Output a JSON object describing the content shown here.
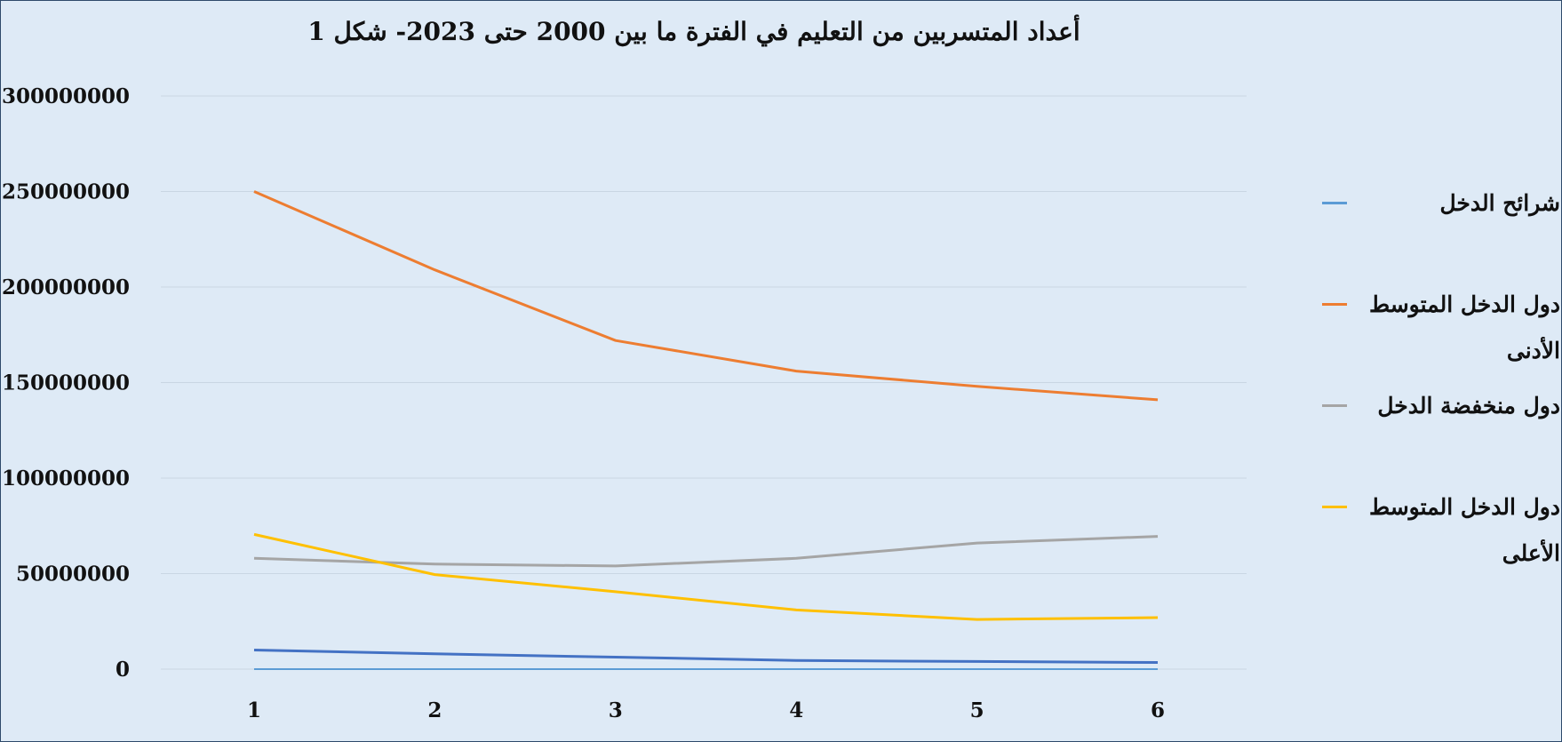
{
  "chart_data": {
    "type": "line",
    "title": "أعداد المتسربين من التعليم في الفترة ما بين 2000 حتى 2023- شكل 1",
    "x": [
      1,
      2,
      3,
      4,
      5,
      6
    ],
    "ylim": [
      0,
      300000000
    ],
    "yticks": [
      0,
      50000000,
      100000000,
      150000000,
      200000000,
      250000000,
      300000000
    ],
    "grid": true,
    "legend_position": "right",
    "series": [
      {
        "name": "شرائح الدخل",
        "color": "#5b9bd5",
        "values": [
          0,
          0,
          0,
          0,
          0,
          0
        ]
      },
      {
        "name": "دول الدخل المتوسط الأدنى",
        "color": "#ed7d31",
        "values": [
          250000000,
          209000000,
          172000000,
          156000000,
          148000000,
          141000000
        ]
      },
      {
        "name": "دول منخفضة الدخل",
        "color": "#a5a5a5",
        "values": [
          58000000,
          55000000,
          54000000,
          58000000,
          66000000,
          69500000
        ]
      },
      {
        "name": "دول الدخل المتوسط الأعلى",
        "color": "#ffc000",
        "values": [
          70500000,
          49500000,
          40500000,
          31000000,
          26000000,
          27000000
        ]
      },
      {
        "name": "",
        "color": "#4472c4",
        "values": [
          10000000,
          8000000,
          6300000,
          4500000,
          4000000,
          3500000
        ]
      }
    ]
  }
}
